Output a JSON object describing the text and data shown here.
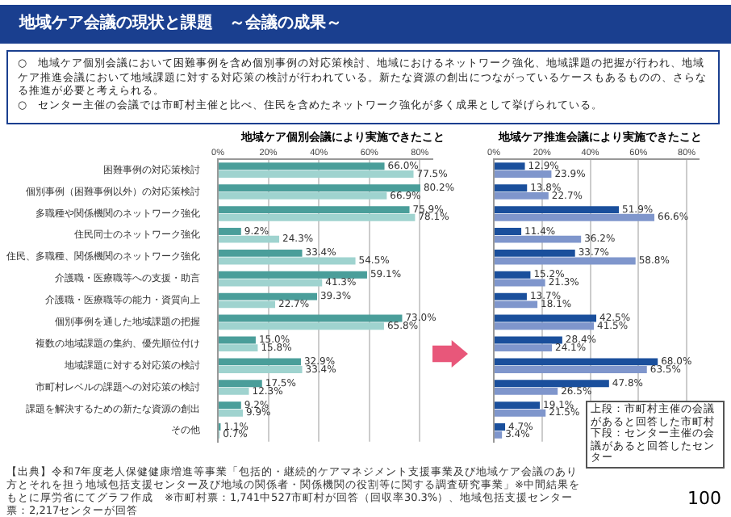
{
  "chart_data": [
    {
      "type": "other",
      "title": "地域ケア会議の現状と課題　～会議の成果～",
      "annotations": [
        "○　地域ケア個別会議において困難事例を含め個別事例の対応策検討、地域におけるネットワーク強化、地域課題の把握が行われ、地域ケア推進会議において地域課題に対する対応策の検討が行われている。新たな資源の創出につながっているケースもあるものの、さらなる推進が必要と考えられる。",
        "○　センター主催の会議では市町村主催と比べ、住民を含めたネットワーク強化が多く成果として挙げられている。",
        "【出典】令和7年度老人保健健康増進等事業「包括的・継続的ケアマネジメント支援事業及び地域ケア会議のあり方とそれを担う地域包括支援センター及び地域の関係者・関係機関の役割等に関する調査研究事業」※中間結果をもとに厚労省にてグラフ作成　※市町村票：1,741中527市町村が回答（回収率30.3%）、地域包括支援センター票：2,217センターが回答",
        "100"
      ]
    },
    {
      "type": "bar",
      "orientation": "horizontal",
      "title": "地域ケア個別会議により実施できたこと",
      "categories": [
        "困難事例の対応策検討",
        "個別事例（困難事例以外）の対応策検討",
        "多職種や関係機関のネットワーク強化",
        "住民同士のネットワーク強化",
        "住民、多職種、関係機関のネットワーク強化",
        "介護職・医療職等への支援・助言",
        "介護職・医療職等の能力・資質向上",
        "個別事例を通した地域課題の把握",
        "複数の地域課題の集約、優先順位付け",
        "地域課題に対する対応策の検討",
        "市町村レベルの課題への対応策の検討",
        "課題を解決するための新たな資源の創出",
        "その他"
      ],
      "xlim": [
        0,
        85
      ],
      "xticks": [
        {
          "value": 0,
          "label": "0%"
        },
        {
          "value": 20,
          "label": "20%"
        },
        {
          "value": 40,
          "label": "40%"
        },
        {
          "value": 60,
          "label": "60%"
        },
        {
          "value": 80,
          "label": "80%"
        }
      ],
      "grid": "x",
      "series": [
        {
          "color": "#4a9e9a",
          "values": [
            66.0,
            80.2,
            75.9,
            9.2,
            33.4,
            59.1,
            39.3,
            73.0,
            15.0,
            32.9,
            17.5,
            9.2,
            1.1
          ],
          "value_labels": [
            "66.0%",
            "80.2%",
            "75.9%",
            "9.2%",
            "33.4%",
            "59.1%",
            "39.3%",
            "73.0%",
            "15.0%",
            "32.9%",
            "17.5%",
            "9.2%",
            "1.1%"
          ]
        },
        {
          "color": "#9fd3cf",
          "values": [
            77.5,
            66.9,
            78.1,
            24.3,
            54.5,
            41.3,
            22.7,
            65.8,
            15.8,
            33.4,
            12.3,
            9.9,
            0.7
          ],
          "value_labels": [
            "77.5%",
            "66.9%",
            "78.1%",
            "24.3%",
            "54.5%",
            "41.3%",
            "22.7%",
            "65.8%",
            "15.8%",
            "33.4%",
            "12.3%",
            "9.9%",
            "0.7%"
          ]
        }
      ]
    },
    {
      "type": "bar",
      "orientation": "horizontal",
      "title": "地域ケア推進会議により実施できたこと",
      "categories": [
        null,
        null,
        null,
        null,
        null,
        null,
        null,
        null,
        null,
        null,
        null,
        null,
        null
      ],
      "xlim": [
        0,
        85
      ],
      "xticks": [
        {
          "value": 0,
          "label": "0%"
        },
        {
          "value": 20,
          "label": "20%"
        },
        {
          "value": 40,
          "label": "40%"
        },
        {
          "value": 60,
          "label": "60%"
        },
        {
          "value": 80,
          "label": "80%"
        }
      ],
      "grid": "x",
      "annotations": [
        "上段：市町村主催の会議があると回答した市町村",
        "下段：センター主催の会議があると回答したセンター"
      ],
      "series": [
        {
          "color": "#1a4f9c",
          "values": [
            12.9,
            13.8,
            51.9,
            11.4,
            33.7,
            15.2,
            13.7,
            42.5,
            28.4,
            68.0,
            47.8,
            19.1,
            4.7
          ],
          "value_labels": [
            "12.9%",
            "13.8%",
            "51.9%",
            "11.4%",
            "33.7%",
            "15.2%",
            "13.7%",
            "42.5%",
            "28.4%",
            "68.0%",
            "47.8%",
            "19.1%",
            "4.7%"
          ]
        },
        {
          "color": "#7f96cc",
          "values": [
            23.9,
            22.7,
            66.6,
            36.2,
            58.8,
            21.3,
            18.1,
            41.5,
            24.1,
            63.5,
            26.5,
            21.5,
            3.4
          ],
          "value_labels": [
            "23.9%",
            "22.7%",
            "66.6%",
            "36.2%",
            "58.8%",
            "21.3%",
            "18.1%",
            "41.5%",
            "24.1%",
            "63.5%",
            "26.5%",
            "21.5%",
            "3.4%"
          ]
        }
      ]
    }
  ]
}
